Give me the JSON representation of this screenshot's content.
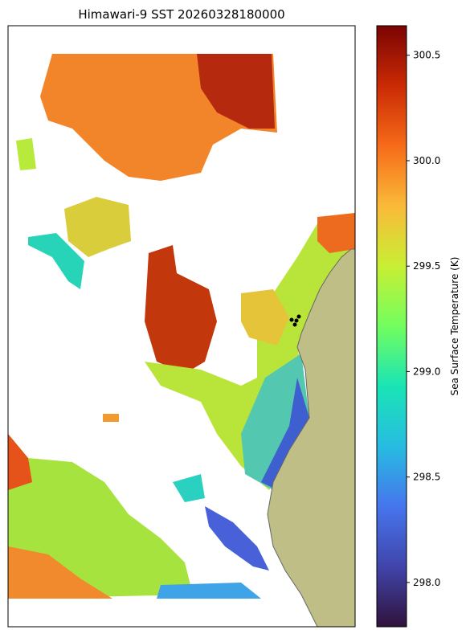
{
  "chart_data": {
    "type": "map",
    "title": "Himawari-9 SST 20260328180000",
    "colorbar": {
      "label": "Sea Surface Temperature (K)",
      "lim": [
        297.79,
        300.64
      ],
      "ticks": [
        {
          "value": 298,
          "label": "298.0"
        },
        298.5,
        {
          "value": 299,
          "label": "299.0"
        },
        299.5,
        {
          "value": 300,
          "label": "300.0"
        },
        300.5
      ]
    }
  }
}
